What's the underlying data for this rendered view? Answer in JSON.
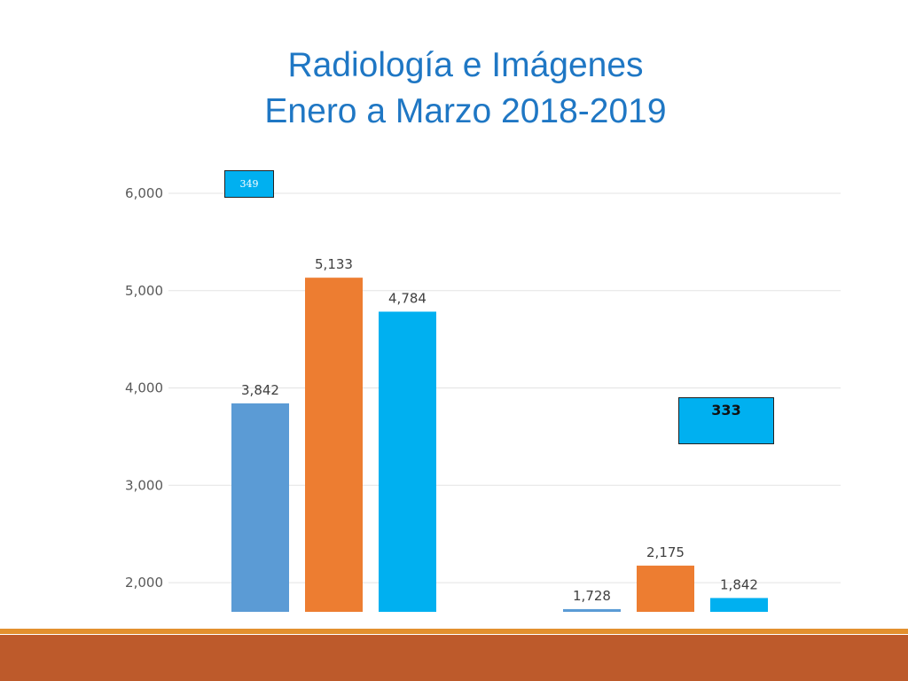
{
  "title": {
    "line1": "Radiología e Imágenes",
    "line2": "Enero a Marzo 2018-2019"
  },
  "callouts": {
    "left": "349",
    "right": "333"
  },
  "colors": {
    "title": "#1f77c4",
    "series1": "#5b9bd5",
    "series2": "#ed7d31",
    "series3": "#00b0f0",
    "footer": "#bd5a2b",
    "footer_accent": "#e3902e"
  },
  "chart_data": {
    "type": "bar",
    "categories": [
      "",
      ""
    ],
    "series": [
      {
        "values": [
          3842,
          1728
        ],
        "labels": [
          "3,842",
          "1,728"
        ],
        "color": "#5b9bd5"
      },
      {
        "values": [
          5133,
          2175
        ],
        "labels": [
          "5,133",
          "2,175"
        ],
        "color": "#ed7d31"
      },
      {
        "values": [
          4784,
          1842
        ],
        "labels": [
          "4,784",
          "1,842"
        ],
        "color": "#00b0f0"
      }
    ],
    "ylim": [
      1700,
      6000
    ],
    "yticks": [
      2000,
      3000,
      4000,
      5000,
      6000
    ],
    "ytick_labels": [
      "2,000",
      "3,000",
      "4,000",
      "5,000",
      "6,000"
    ],
    "grid": true,
    "legend": "none"
  }
}
